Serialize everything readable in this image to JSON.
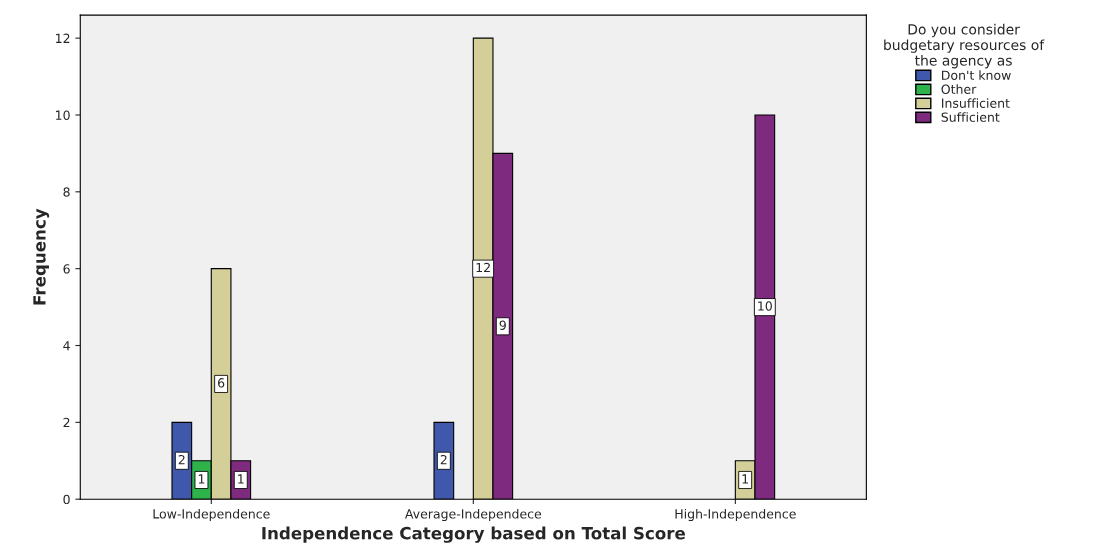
{
  "chart_data": {
    "type": "bar",
    "xlabel": "Independence Category based on Total Score",
    "ylabel": "Frequency",
    "legend_title": "Do you consider\nbudgetary resources of\nthe agency as",
    "categories": [
      "Low-Independence",
      "Average-Independece",
      "High-Independence"
    ],
    "series": [
      {
        "name": "Don't know",
        "color": "#3f58ab",
        "values": [
          2,
          2,
          null
        ]
      },
      {
        "name": "Other",
        "color": "#2eb24a",
        "values": [
          1,
          null,
          null
        ]
      },
      {
        "name": "Insufficient",
        "color": "#d4cf98",
        "values": [
          6,
          12,
          1
        ]
      },
      {
        "name": "Sufficient",
        "color": "#7e2a7f",
        "values": [
          1,
          9,
          10
        ]
      }
    ],
    "ylim": [
      0,
      12.6
    ],
    "yticks": [
      0,
      2,
      4,
      6,
      8,
      10,
      12
    ],
    "grid": false,
    "legend": "right",
    "data_labels": true
  }
}
